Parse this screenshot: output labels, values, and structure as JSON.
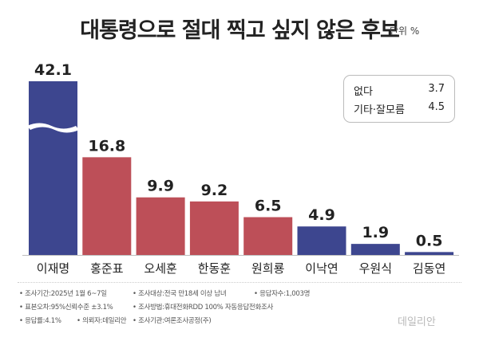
{
  "header": {
    "title": "대통령으로 절대 찍고 싶지 않은 후보",
    "unit": "단위 %"
  },
  "legend": {
    "items": [
      {
        "label": "없다",
        "value": "3.7"
      },
      {
        "label": "기타·잘모름",
        "value": "4.5"
      }
    ]
  },
  "chart_data": {
    "type": "bar",
    "title": "대통령으로 절대 찍고 싶지 않은 후보",
    "unit": "%",
    "categories": [
      "이재명",
      "홍준표",
      "오세훈",
      "한동훈",
      "원희룡",
      "이낙연",
      "우원식",
      "김동연"
    ],
    "values": [
      42.1,
      16.8,
      9.9,
      9.2,
      6.5,
      4.9,
      1.9,
      0.5
    ],
    "value_labels": [
      "42.1",
      "16.8",
      "9.9",
      "9.2",
      "6.5",
      "4.9",
      "1.9",
      "0.5"
    ],
    "bar_colors": [
      "#3d468f",
      "#bd4f58",
      "#bd4f58",
      "#bd4f58",
      "#bd4f58",
      "#3d468f",
      "#3d468f",
      "#3d468f"
    ],
    "axis_break": true,
    "extra": [
      {
        "label": "없다",
        "value": 3.7
      },
      {
        "label": "기타·잘모름",
        "value": 4.5
      }
    ]
  },
  "footnotes": {
    "line1": [
      "조사기간:2025년 1월 6~7일",
      "조사대상:전국 만18세 이상 남녀",
      "응답자수:1,003명"
    ],
    "line2": [
      "표본오차:95%신뢰수준 ±3.1%",
      "조사방법:휴대전화RDD 100% 자동응답전화조사"
    ],
    "line3": [
      "응답률:4.1%",
      "의뢰자:데일리안",
      "조사기관:여론조사공정(주)"
    ]
  },
  "brand": {
    "logo": "데일리안"
  }
}
